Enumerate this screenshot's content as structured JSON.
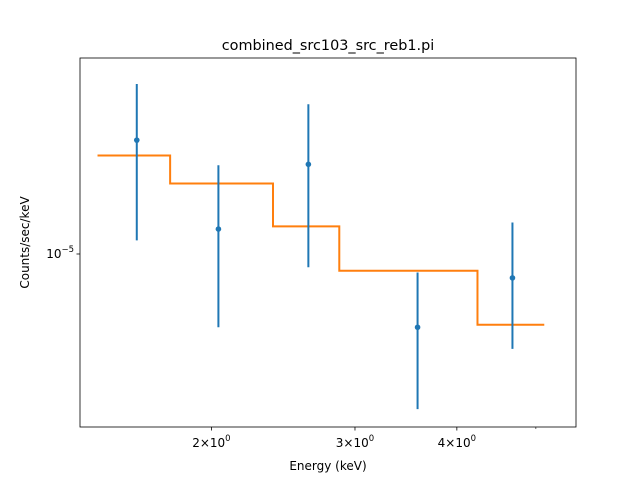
{
  "chart_data": {
    "type": "scatter",
    "title": "combined_src103_src_reb1.pi",
    "xlabel": "Energy (keV)",
    "ylabel": "Counts/sec/keV",
    "xscale": "log",
    "yscale": "log",
    "xlim": [
      1.38,
      5.6
    ],
    "ylim": [
      3.36e-06,
      3.44e-05
    ],
    "grid": false,
    "x_ticks": [
      {
        "value": 2,
        "base": "2×10",
        "exp": "0"
      },
      {
        "value": 3,
        "base": "3×10",
        "exp": "0"
      },
      {
        "value": 4,
        "base": "4×10",
        "exp": "0"
      }
    ],
    "x_minor_ticks": [
      5
    ],
    "y_ticks": [
      {
        "value": 1e-05,
        "base": "10",
        "exp": "−5"
      }
    ],
    "series": [
      {
        "kind": "errorbar",
        "color": "#1f77b4",
        "points": [
          {
            "x": 1.62,
            "y": 2.05e-05,
            "ylo": 1.09e-05,
            "yhi": 2.92e-05
          },
          {
            "x": 2.04,
            "y": 1.17e-05,
            "ylo": 6.3e-06,
            "yhi": 1.75e-05
          },
          {
            "x": 2.63,
            "y": 1.76e-05,
            "ylo": 9.2e-06,
            "yhi": 2.57e-05
          },
          {
            "x": 3.58,
            "y": 6.3e-06,
            "ylo": 3.76e-06,
            "yhi": 8.9e-06
          },
          {
            "x": 4.68,
            "y": 8.6e-06,
            "ylo": 5.5e-06,
            "yhi": 1.22e-05
          }
        ]
      },
      {
        "kind": "step",
        "color": "#ff7f0e",
        "steps": [
          {
            "x0": 1.45,
            "x1": 1.78,
            "y": 1.86e-05
          },
          {
            "x0": 1.78,
            "x1": 2.38,
            "y": 1.56e-05
          },
          {
            "x0": 2.38,
            "x1": 2.87,
            "y": 1.19e-05
          },
          {
            "x0": 2.87,
            "x1": 4.24,
            "y": 9e-06
          },
          {
            "x0": 4.24,
            "x1": 5.12,
            "y": 6.4e-06
          }
        ]
      }
    ]
  }
}
